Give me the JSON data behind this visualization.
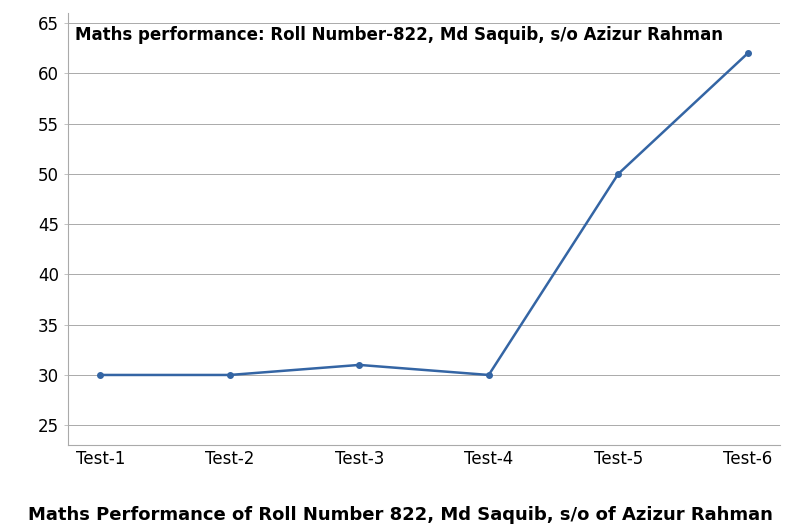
{
  "x_labels": [
    "Test-1",
    "Test-2",
    "Test-3",
    "Test-4",
    "Test-5",
    "Test-6"
  ],
  "y_values": [
    30,
    30,
    31,
    30,
    50,
    62
  ],
  "line_color": "#3465a4",
  "marker": "o",
  "marker_size": 4,
  "line_width": 1.8,
  "title_inside": "Maths performance: Roll Number-822, Md Saquib, s/o Azizur Rahman",
  "xlabel_bottom": "Maths Performance of Roll Number 822, Md Saquib, s/o of Azizur Rahman",
  "ylim": [
    23,
    66
  ],
  "yticks": [
    25,
    30,
    35,
    40,
    45,
    50,
    55,
    60,
    65
  ],
  "grid_color": "#aaaaaa",
  "background_color": "#ffffff",
  "plot_bg_color": "#ffffff",
  "title_fontsize": 12,
  "xlabel_fontsize": 13,
  "tick_fontsize": 12
}
